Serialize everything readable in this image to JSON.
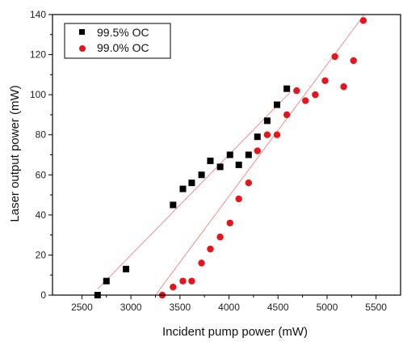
{
  "chart_data": {
    "type": "scatter",
    "xlabel": "Incident pump power (mW)",
    "ylabel": "Laser output power (mW)",
    "xlim": [
      2200,
      5750
    ],
    "ylim": [
      0,
      140
    ],
    "xticks": [
      2500,
      3000,
      3500,
      4000,
      4500,
      5000,
      5500
    ],
    "yticks": [
      0,
      20,
      40,
      60,
      80,
      100,
      120,
      140
    ],
    "grid": false,
    "legend_position": "top-left",
    "series": [
      {
        "name": "99.5% OC",
        "marker": "square",
        "color": "#000000",
        "x": [
          2660,
          2750,
          2950,
          3430,
          3530,
          3620,
          3720,
          3810,
          3910,
          4010,
          4100,
          4200,
          4290,
          4390,
          4490,
          4590
        ],
        "y": [
          0,
          7,
          13,
          45,
          53,
          56,
          60,
          67,
          64,
          70,
          65,
          70,
          79,
          87,
          95,
          103
        ]
      },
      {
        "name": "99.0% OC",
        "marker": "circle",
        "color": "#e8141b",
        "x": [
          3320,
          3430,
          3530,
          3620,
          3720,
          3810,
          3910,
          4010,
          4100,
          4200,
          4290,
          4390,
          4490,
          4590,
          4690,
          4780,
          4880,
          4980,
          5080,
          5170,
          5270,
          5370
        ],
        "y": [
          0,
          4,
          7,
          7,
          16,
          23,
          29,
          36,
          48,
          56,
          72,
          80,
          80,
          90,
          102,
          97,
          100,
          107,
          119,
          104,
          117,
          137
        ]
      }
    ],
    "fit_lines": [
      {
        "series": "99.5% OC",
        "color": "#f08c8c",
        "x": [
          2660,
          4620
        ],
        "y": [
          3,
          101
        ]
      },
      {
        "series": "99.0% OC",
        "color": "#f08c8c",
        "x": [
          3250,
          5380
        ],
        "y": [
          0,
          140
        ]
      }
    ]
  }
}
